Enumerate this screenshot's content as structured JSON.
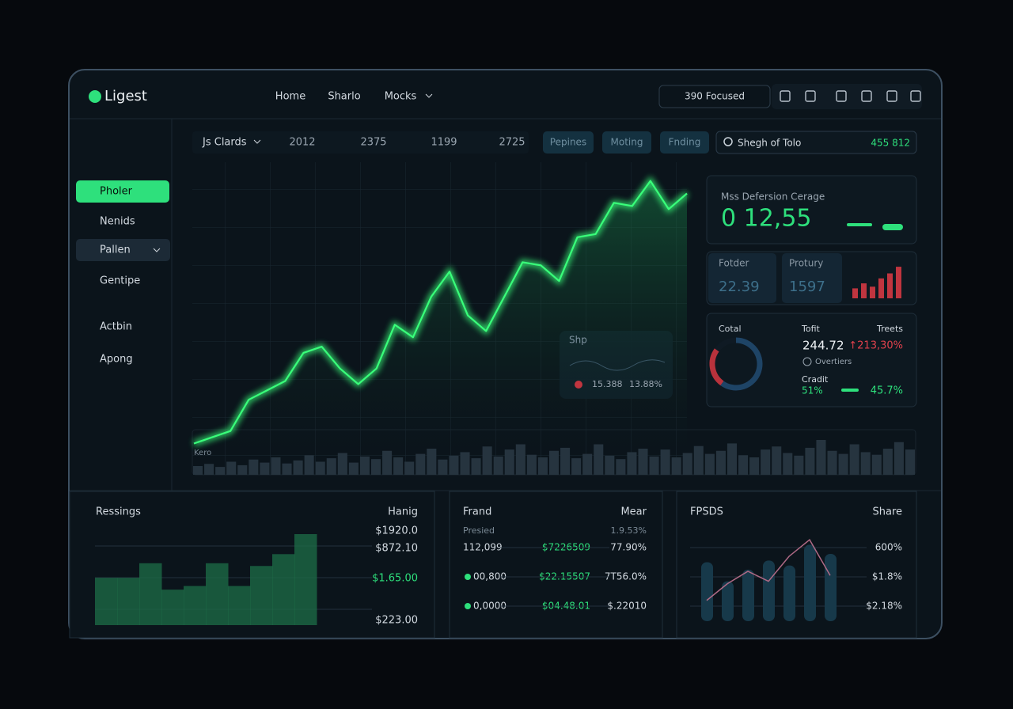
{
  "header": {
    "logo": "Ligest",
    "nav": [
      "Home",
      "Sharlo",
      "Mocks"
    ],
    "focus": "390 Focused"
  },
  "sidebar": {
    "items": [
      "Pholer",
      "Nenids",
      "Pallen",
      "Gentipe",
      "Actbin",
      "Apong"
    ]
  },
  "toolbar": {
    "dropdown": "Js Clards",
    "stats": [
      "2012",
      "2375",
      "1199",
      "2725"
    ],
    "pills": [
      "Pepines",
      "Moting",
      "Fnding"
    ],
    "search": "Shegh of Tolo",
    "search_value": "455 812"
  },
  "main_chart": {
    "type": "line",
    "label": "Kero",
    "color": "#39ff7a",
    "ylim": [
      0,
      100
    ],
    "values": [
      10,
      12,
      14,
      24,
      27,
      30,
      39,
      41,
      34,
      29,
      34,
      48,
      44,
      57,
      65,
      51,
      46,
      57,
      68,
      67,
      62,
      76,
      77,
      87,
      86,
      94,
      85,
      90
    ],
    "volume": {
      "color": "#26343f",
      "ylim": [
        0,
        100
      ],
      "values": [
        20,
        25,
        18,
        30,
        22,
        35,
        28,
        40,
        26,
        33,
        45,
        30,
        38,
        50,
        28,
        42,
        36,
        55,
        40,
        30,
        48,
        60,
        35,
        44,
        52,
        38,
        65,
        42,
        58,
        70,
        46,
        40,
        55,
        62,
        38,
        48,
        70,
        44,
        36,
        52,
        60,
        42,
        58,
        40,
        50,
        66,
        48,
        55,
        72,
        45,
        40,
        58,
        65,
        50,
        44,
        62,
        80,
        55,
        48,
        70,
        52,
        46,
        60,
        75,
        58
      ]
    }
  },
  "overlay_card": {
    "title": "Shp",
    "value": "15.388",
    "change": "13.88%"
  },
  "stat_card": {
    "title": "Mss Defersion Cerage",
    "value": "0 12,55"
  },
  "mini_cards": [
    {
      "label": "Fotder",
      "value": "22.39"
    },
    {
      "label": "Protury",
      "value": "1597"
    }
  ],
  "mini_bars": {
    "type": "bar",
    "color": "#c0353f",
    "ylim": [
      0,
      100
    ],
    "values": [
      30,
      45,
      35,
      60,
      75,
      95
    ]
  },
  "summary": {
    "title": "Cotal",
    "donut": {
      "type": "pie",
      "values": [
        60,
        25,
        15
      ],
      "colors": [
        "#1e4466",
        "#b8323c",
        "#0f1a24"
      ]
    },
    "col1": "Tofit",
    "col2": "Treets",
    "value": "244.72",
    "change": "↑213,30%",
    "sub": "Overtiers",
    "credit": "Cradit",
    "credit_value": "51%",
    "share": "45.7%"
  },
  "panels": [
    {
      "title": "Ressings",
      "right": "Hanig",
      "labels": [
        "$1920.0",
        "$872.10",
        "$1.65.00",
        "$223.00"
      ],
      "chart": {
        "type": "bar",
        "color": "#1d6e48",
        "ylim": [
          0,
          100
        ],
        "values": [
          52,
          52,
          68,
          39,
          43,
          68,
          43,
          65,
          78,
          100
        ]
      }
    },
    {
      "title": "Frand",
      "right": "Mear",
      "header": [
        "Presied",
        "1.9.53%"
      ],
      "rows": [
        [
          "112,099",
          "$7226509",
          "77.90%"
        ],
        [
          "00,800",
          "$22.15507",
          "7T56.0%"
        ],
        [
          "0,0000",
          "$04.48.01",
          "$.22010"
        ]
      ]
    },
    {
      "title": "FPSDS",
      "right": "Share",
      "labels": [
        "600%",
        "$1.8%",
        "$2.18%"
      ],
      "chart": {
        "type": "bar",
        "color": "#17394a",
        "ylim": [
          0,
          100
        ],
        "values": [
          71,
          48,
          62,
          73,
          67,
          92,
          81
        ],
        "line": [
          25,
          45,
          60,
          48,
          78,
          98,
          55
        ]
      }
    }
  ]
}
